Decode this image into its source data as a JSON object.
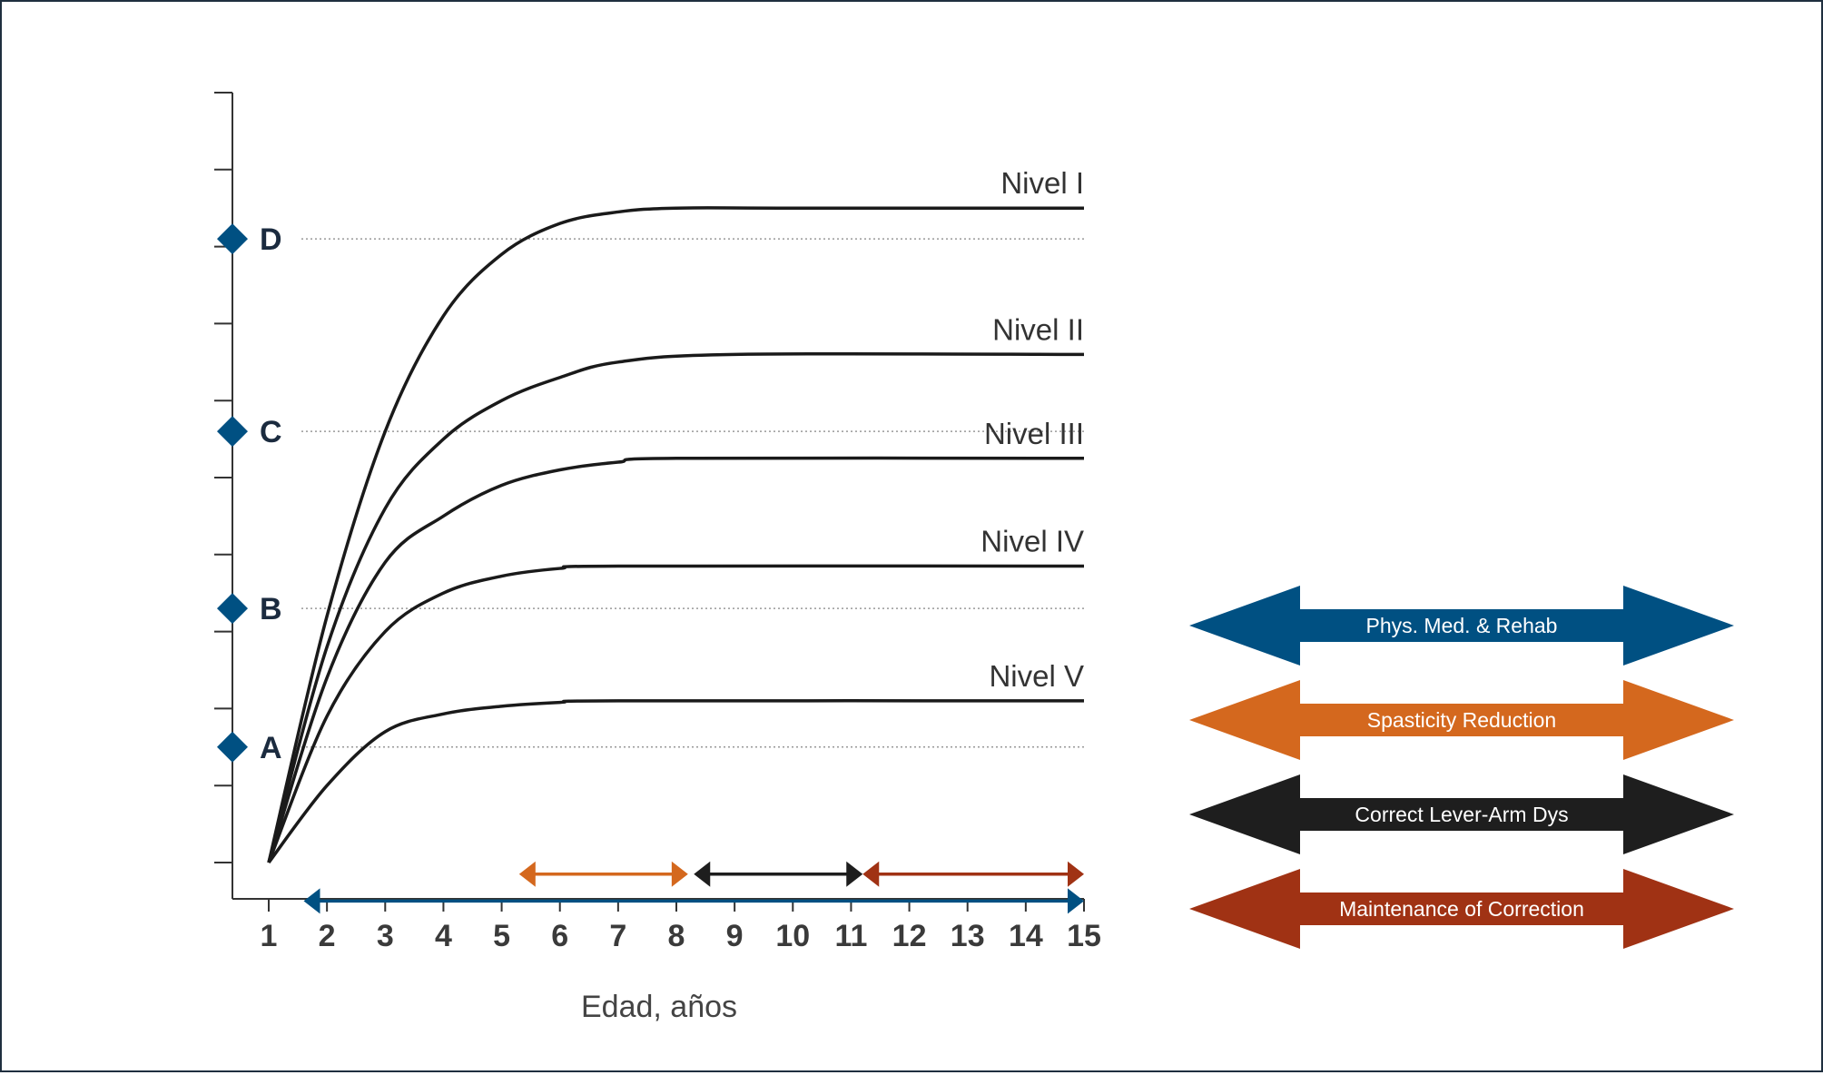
{
  "chart_data": {
    "type": "line",
    "xlabel": "Edad, años",
    "ylabel": "",
    "x_ticks": [
      1,
      2,
      3,
      4,
      5,
      6,
      7,
      8,
      9,
      10,
      11,
      12,
      13,
      14,
      15
    ],
    "xlim": [
      1,
      15
    ],
    "ylim": [
      0,
      10
    ],
    "grid": false,
    "y_markers": [
      {
        "label": "A",
        "y": 1.5
      },
      {
        "label": "B",
        "y": 3.3
      },
      {
        "label": "C",
        "y": 5.6
      },
      {
        "label": "D",
        "y": 8.1
      }
    ],
    "series": [
      {
        "name": "Nivel I",
        "plateau": 8.5,
        "points": [
          [
            1,
            0
          ],
          [
            2,
            3.2
          ],
          [
            3,
            5.6
          ],
          [
            4,
            7.1
          ],
          [
            5,
            7.9
          ],
          [
            6,
            8.3
          ],
          [
            7,
            8.45
          ],
          [
            8,
            8.5
          ],
          [
            10,
            8.5
          ],
          [
            15,
            8.5
          ]
        ]
      },
      {
        "name": "Nivel II",
        "plateau": 6.6,
        "points": [
          [
            1,
            0
          ],
          [
            2,
            2.8
          ],
          [
            3,
            4.6
          ],
          [
            4,
            5.5
          ],
          [
            5,
            6.0
          ],
          [
            6,
            6.3
          ],
          [
            7,
            6.5
          ],
          [
            9,
            6.6
          ],
          [
            15,
            6.6
          ]
        ]
      },
      {
        "name": "Nivel III",
        "plateau": 5.25,
        "points": [
          [
            1,
            0
          ],
          [
            2,
            2.4
          ],
          [
            3,
            3.9
          ],
          [
            4,
            4.5
          ],
          [
            5,
            4.9
          ],
          [
            6,
            5.1
          ],
          [
            7,
            5.2
          ],
          [
            8,
            5.25
          ],
          [
            15,
            5.25
          ]
        ]
      },
      {
        "name": "Nivel IV",
        "plateau": 3.85,
        "points": [
          [
            1,
            0
          ],
          [
            2,
            1.9
          ],
          [
            3,
            3.0
          ],
          [
            4,
            3.5
          ],
          [
            5,
            3.72
          ],
          [
            6,
            3.82
          ],
          [
            7,
            3.85
          ],
          [
            15,
            3.85
          ]
        ]
      },
      {
        "name": "Nivel V",
        "plateau": 2.1,
        "points": [
          [
            1,
            0
          ],
          [
            2,
            1.0
          ],
          [
            3,
            1.7
          ],
          [
            4,
            1.93
          ],
          [
            5,
            2.03
          ],
          [
            6,
            2.08
          ],
          [
            7,
            2.1
          ],
          [
            15,
            2.1
          ]
        ]
      }
    ],
    "treatment_ranges": [
      {
        "name": "Phys. Med. & Rehab",
        "color": "#005082",
        "from": 1.6,
        "to": 15,
        "level": -0.5
      },
      {
        "name": "Spasticity Reduction",
        "color": "#d4681e",
        "from": 5.3,
        "to": 8.2,
        "level": -0.15
      },
      {
        "name": "Correct Lever-Arm Dys",
        "color": "#1e1e1e",
        "from": 8.3,
        "to": 11.2,
        "level": -0.15
      },
      {
        "name": "Maintenance of Correction",
        "color": "#a03214",
        "from": 11.2,
        "to": 15,
        "level": -0.15
      }
    ]
  },
  "colors": {
    "curve": "#1a1a1a",
    "axis": "#333333",
    "marker": "#005082",
    "gridline": "#999999"
  }
}
